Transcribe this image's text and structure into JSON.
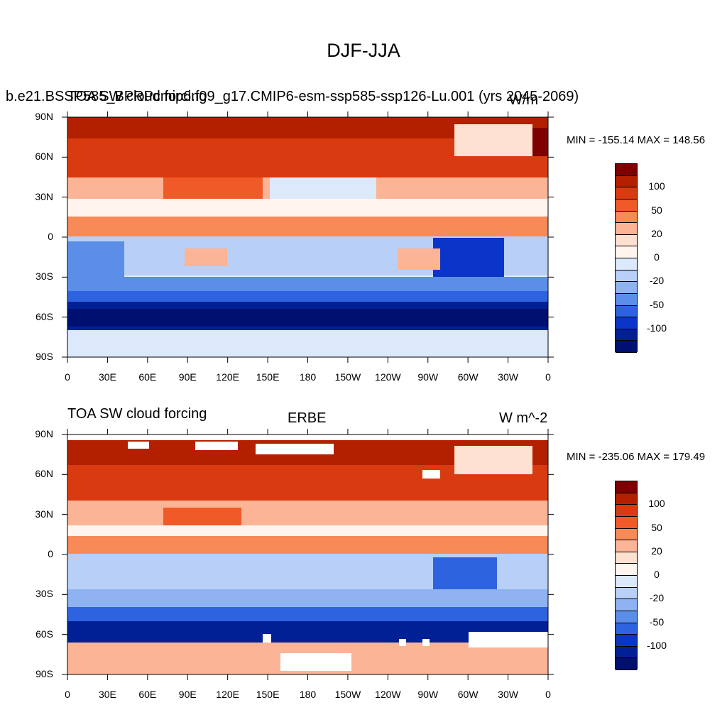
{
  "title": "DJF-JJA",
  "panels": [
    {
      "id": "model",
      "left_text": "TOA SW cloud forcing",
      "overlap_text": "b.e21.BSSP585_BPRPcmip6.f09_g17.CMIP6-esm-ssp585-ssp126-Lu.001 (yrs 2045-2069)",
      "right_text": "W/m",
      "center_text": "",
      "minmax": "MIN = -155.14 MAX = 148.56",
      "y_ticks": [
        "90N",
        "60N",
        "30N",
        "0",
        "30S",
        "60S",
        "90S"
      ],
      "x_ticks": [
        "0",
        "30E",
        "60E",
        "90E",
        "120E",
        "150E",
        "180",
        "150W",
        "120W",
        "90W",
        "60W",
        "30W",
        "0"
      ],
      "colorbar_labels": [
        "100",
        "50",
        "20",
        "0",
        "-20",
        "-50",
        "-100"
      ]
    },
    {
      "id": "obs",
      "left_text": "TOA SW cloud forcing",
      "overlap_text": "",
      "center_text": "ERBE",
      "right_text": "W m^-2",
      "minmax": "MIN = -235.06 MAX = 179.49",
      "y_ticks": [
        "90N",
        "60N",
        "30N",
        "0",
        "30S",
        "60S",
        "90S"
      ],
      "x_ticks": [
        "0",
        "30E",
        "60E",
        "90E",
        "120E",
        "150E",
        "180",
        "150W",
        "120W",
        "90W",
        "60W",
        "30W",
        "0"
      ],
      "colorbar_labels": [
        "100",
        "50",
        "20",
        "0",
        "-20",
        "-50",
        "-100"
      ]
    }
  ],
  "colorbar_colors": [
    "#7f0000",
    "#b22000",
    "#d93a10",
    "#f05a28",
    "#f88a58",
    "#fbb496",
    "#fde0d0",
    "#fff5ee",
    "#dce9fb",
    "#b8d0f8",
    "#8fb2f2",
    "#5a8ee8",
    "#2e63e0",
    "#0b35c8",
    "#022096",
    "#001070"
  ],
  "scale": {
    "min": -120,
    "max": 120
  }
}
